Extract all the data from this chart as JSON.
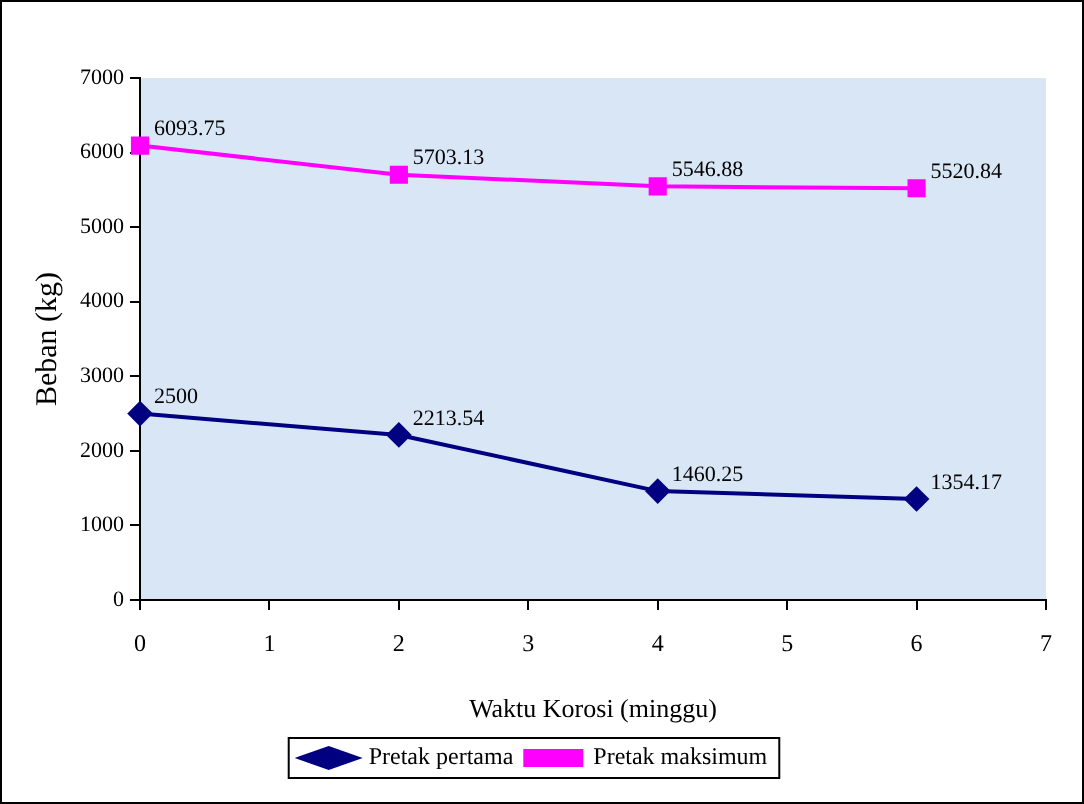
{
  "chart_data": {
    "type": "line",
    "xlabel": "Waktu Korosi (minggu)",
    "ylabel": "Beban (kg)",
    "x": [
      0,
      2,
      4,
      6
    ],
    "series": [
      {
        "name": "Pretak pertama",
        "color": "#000080",
        "marker": "diamond",
        "values": [
          2500,
          2213.54,
          1460.25,
          1354.17
        ]
      },
      {
        "name": "Pretak maksimum",
        "color": "#ff00ff",
        "marker": "square",
        "values": [
          6093.75,
          5703.13,
          5546.88,
          5520.84
        ]
      }
    ],
    "xlim": [
      0,
      7
    ],
    "xticks": [
      0,
      1,
      2,
      3,
      4,
      5,
      6,
      7
    ],
    "ylim": [
      0,
      7000
    ],
    "yticks": [
      0,
      1000,
      2000,
      3000,
      4000,
      5000,
      6000,
      7000
    ],
    "grid": false,
    "legend": "bottom",
    "data_labels": true
  }
}
